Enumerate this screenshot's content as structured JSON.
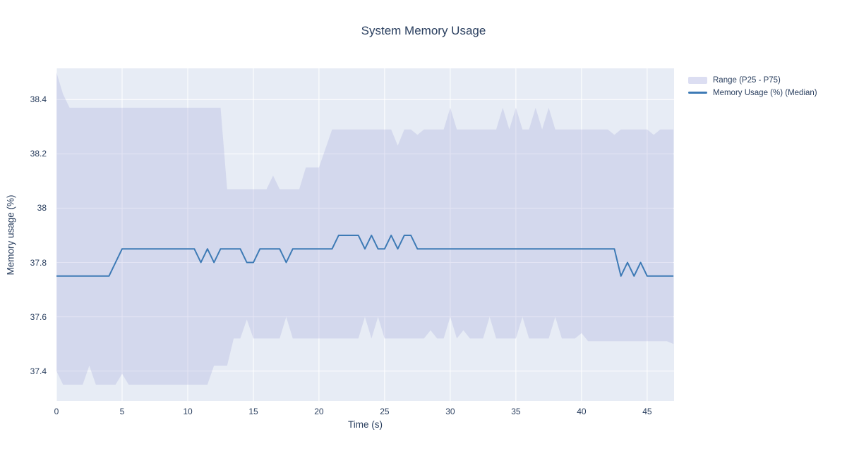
{
  "title_bar": {
    "title": "System Memory Usage"
  },
  "legend": {
    "items": [
      {
        "label": "Range (P25 - P75)",
        "type": "band"
      },
      {
        "label": "Memory Usage (%) (Median)",
        "type": "line"
      }
    ]
  },
  "colors": {
    "page_bg": "#ffffff",
    "plot_bg": "#e7ecf5",
    "band_fill": "rgba(165,170,220,0.30)",
    "band_swatch": "#dcdef2",
    "line": "#3d7ab5",
    "grid": "#ffffff",
    "text": "#2a3f5f"
  },
  "chart_data": {
    "type": "line",
    "title": "System Memory Usage",
    "xlabel": "Time (s)",
    "ylabel": "Memory usage (%)",
    "grid": true,
    "legend_position": "right-top",
    "x_start": 0,
    "x_step": 0.5,
    "x_range": [
      0,
      47.05
    ],
    "y_range": [
      37.29,
      38.515
    ],
    "x_ticks": [
      0,
      5,
      10,
      15,
      20,
      25,
      30,
      35,
      40,
      45
    ],
    "y_ticks": [
      {
        "v": 37.4,
        "label": "37.4"
      },
      {
        "v": 37.6,
        "label": "37.6"
      },
      {
        "v": 37.8,
        "label": "37.8"
      },
      {
        "v": 38.0,
        "label": "38"
      },
      {
        "v": 38.2,
        "label": "38.2"
      },
      {
        "v": 38.4,
        "label": "38.4"
      }
    ],
    "band_name": "Range (P25 - P75)",
    "series": [
      {
        "name": "Memory Usage (%) (Median)",
        "type": "line",
        "color": "#3d7ab5",
        "values": [
          37.75,
          37.75,
          37.75,
          37.75,
          37.75,
          37.75,
          37.75,
          37.75,
          37.75,
          37.8,
          37.85,
          37.85,
          37.85,
          37.85,
          37.85,
          37.85,
          37.85,
          37.85,
          37.85,
          37.85,
          37.85,
          37.85,
          37.8,
          37.85,
          37.8,
          37.85,
          37.85,
          37.85,
          37.85,
          37.8,
          37.8,
          37.85,
          37.85,
          37.85,
          37.85,
          37.8,
          37.85,
          37.85,
          37.85,
          37.85,
          37.85,
          37.85,
          37.85,
          37.9,
          37.9,
          37.9,
          37.9,
          37.85,
          37.9,
          37.85,
          37.85,
          37.9,
          37.85,
          37.9,
          37.9,
          37.85,
          37.85,
          37.85,
          37.85,
          37.85,
          37.85,
          37.85,
          37.85,
          37.85,
          37.85,
          37.85,
          37.85,
          37.85,
          37.85,
          37.85,
          37.85,
          37.85,
          37.85,
          37.85,
          37.85,
          37.85,
          37.85,
          37.85,
          37.85,
          37.85,
          37.85,
          37.85,
          37.85,
          37.85,
          37.85,
          37.85,
          37.75,
          37.8,
          37.75,
          37.8,
          37.75,
          37.75,
          37.75,
          37.75,
          37.75
        ]
      },
      {
        "name": "P75",
        "type": "band-upper",
        "values": [
          38.5,
          38.42,
          38.37,
          38.37,
          38.37,
          38.37,
          38.37,
          38.37,
          38.37,
          38.37,
          38.37,
          38.37,
          38.37,
          38.37,
          38.37,
          38.37,
          38.37,
          38.37,
          38.37,
          38.37,
          38.37,
          38.37,
          38.37,
          38.37,
          38.37,
          38.37,
          38.07,
          38.07,
          38.07,
          38.07,
          38.07,
          38.07,
          38.07,
          38.12,
          38.07,
          38.07,
          38.07,
          38.07,
          38.15,
          38.15,
          38.15,
          38.22,
          38.29,
          38.29,
          38.29,
          38.29,
          38.29,
          38.29,
          38.29,
          38.29,
          38.29,
          38.29,
          38.23,
          38.29,
          38.29,
          38.27,
          38.29,
          38.29,
          38.29,
          38.29,
          38.37,
          38.29,
          38.29,
          38.29,
          38.29,
          38.29,
          38.29,
          38.29,
          38.37,
          38.29,
          38.37,
          38.29,
          38.29,
          38.37,
          38.29,
          38.37,
          38.29,
          38.29,
          38.29,
          38.29,
          38.29,
          38.29,
          38.29,
          38.29,
          38.29,
          38.27,
          38.29,
          38.29,
          38.29,
          38.29,
          38.29,
          38.27,
          38.29,
          38.29,
          38.29
        ]
      },
      {
        "name": "P25",
        "type": "band-lower",
        "values": [
          37.4,
          37.35,
          37.35,
          37.35,
          37.35,
          37.42,
          37.35,
          37.35,
          37.35,
          37.35,
          37.39,
          37.35,
          37.35,
          37.35,
          37.35,
          37.35,
          37.35,
          37.35,
          37.35,
          37.35,
          37.35,
          37.35,
          37.35,
          37.35,
          37.42,
          37.42,
          37.42,
          37.52,
          37.52,
          37.59,
          37.52,
          37.52,
          37.52,
          37.52,
          37.52,
          37.6,
          37.52,
          37.52,
          37.52,
          37.52,
          37.52,
          37.52,
          37.52,
          37.52,
          37.52,
          37.52,
          37.52,
          37.6,
          37.52,
          37.6,
          37.52,
          37.52,
          37.52,
          37.52,
          37.52,
          37.52,
          37.52,
          37.55,
          37.52,
          37.52,
          37.6,
          37.52,
          37.55,
          37.52,
          37.52,
          37.52,
          37.6,
          37.52,
          37.52,
          37.52,
          37.52,
          37.6,
          37.52,
          37.52,
          37.52,
          37.52,
          37.6,
          37.52,
          37.52,
          37.52,
          37.54,
          37.51,
          37.51,
          37.51,
          37.51,
          37.51,
          37.51,
          37.51,
          37.51,
          37.51,
          37.51,
          37.51,
          37.51,
          37.51,
          37.5
        ]
      }
    ]
  }
}
